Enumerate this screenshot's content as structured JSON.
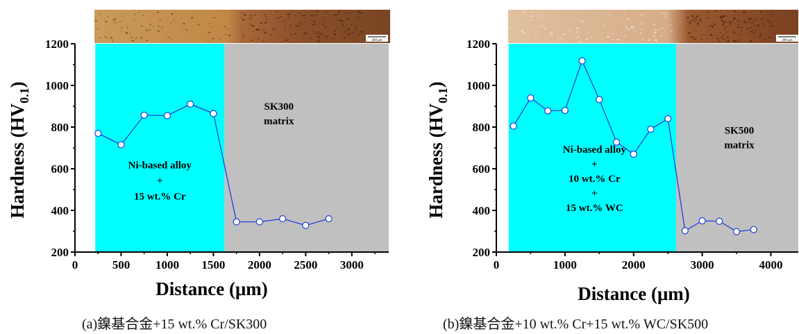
{
  "colors": {
    "coating": "#00ffff",
    "matrix": "#c0c0c0",
    "line": "#1f3fd8",
    "marker_fill": "#ffffff"
  },
  "chart_data": [
    {
      "type": "line",
      "caption": "(a)鎳基合金+15 wt.% Cr/SK300",
      "xlabel": "Distance (μm)",
      "ylabel_main": "Hardness (HV",
      "ylabel_sub": "0.1",
      "ylabel_close": ")",
      "xlim": [
        0,
        3400
      ],
      "ylim": [
        200,
        1200
      ],
      "xticks": [
        0,
        500,
        1000,
        1500,
        2000,
        2500,
        3000
      ],
      "yticks": [
        200,
        400,
        600,
        800,
        1000,
        1200
      ],
      "regions": [
        {
          "kind": "coating",
          "x0": 220,
          "x1": 1620,
          "lines": [
            "Ni-based alloy",
            "+",
            "15 wt.% Cr"
          ],
          "label_x": 920,
          "label_y": [
            618,
            543,
            468
          ]
        },
        {
          "kind": "matrix",
          "x0": 1620,
          "x1": 3400,
          "lines": [
            "SK300",
            "matrix"
          ],
          "label_x": 2210,
          "label_y": [
            900,
            830
          ]
        }
      ],
      "x": [
        250,
        500,
        750,
        1000,
        1250,
        1500,
        1750,
        2000,
        2250,
        2500,
        2750
      ],
      "y": [
        770,
        715,
        857,
        855,
        910,
        865,
        345,
        345,
        360,
        328,
        360
      ],
      "scalebar_label": "200 μm"
    },
    {
      "type": "line",
      "caption": "(b)鎳基合金+10 wt.% Cr+15 wt.% WC/SK500",
      "xlabel": "Distance (μm)",
      "ylabel_main": "Hardness (HV",
      "ylabel_sub": "0.1",
      "ylabel_close": ")",
      "xlim": [
        0,
        4400
      ],
      "ylim": [
        200,
        1200
      ],
      "xticks": [
        0,
        1000,
        2000,
        3000,
        4000
      ],
      "yticks": [
        200,
        400,
        600,
        800,
        1000,
        1200
      ],
      "regions": [
        {
          "kind": "coating",
          "x0": 180,
          "x1": 2620,
          "lines": [
            "Ni-based alloy",
            "+",
            "10 wt.% Cr",
            "+",
            "15 wt.% WC"
          ],
          "label_x": 1430,
          "label_y": [
            693,
            623,
            553,
            483,
            413
          ]
        },
        {
          "kind": "matrix",
          "x0": 2620,
          "x1": 4400,
          "lines": [
            "SK500",
            "matrix"
          ],
          "label_x": 3540,
          "label_y": [
            785,
            715
          ]
        }
      ],
      "x": [
        250,
        500,
        750,
        1000,
        1250,
        1500,
        1750,
        2000,
        2250,
        2500,
        2750,
        3000,
        3250,
        3500,
        3750
      ],
      "y": [
        805,
        940,
        878,
        880,
        1118,
        932,
        728,
        670,
        790,
        840,
        302,
        350,
        348,
        298,
        308
      ],
      "scalebar_label": "200 μm"
    }
  ]
}
